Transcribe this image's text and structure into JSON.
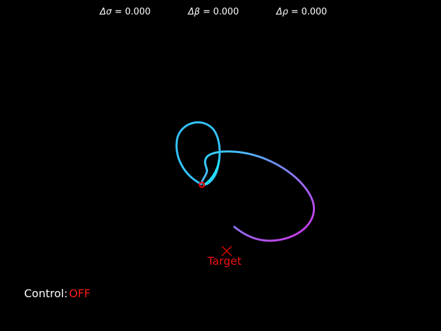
{
  "readouts": [
    {
      "symbol": "Δσ",
      "value": "0.000"
    },
    {
      "symbol": "Δβ",
      "value": "0.000"
    },
    {
      "symbol": "Δρ",
      "value": "0.000"
    }
  ],
  "target": {
    "label": "Target",
    "marker_icon": "x-mark-icon",
    "color": "#ff0000"
  },
  "control": {
    "label": "Control:",
    "state": "OFF",
    "state_color": "#ff1a1a"
  },
  "colors": {
    "background": "#000000",
    "trail_start": "#22ddff",
    "trail_end": "#dd22ee",
    "marker": "#ff0000"
  }
}
